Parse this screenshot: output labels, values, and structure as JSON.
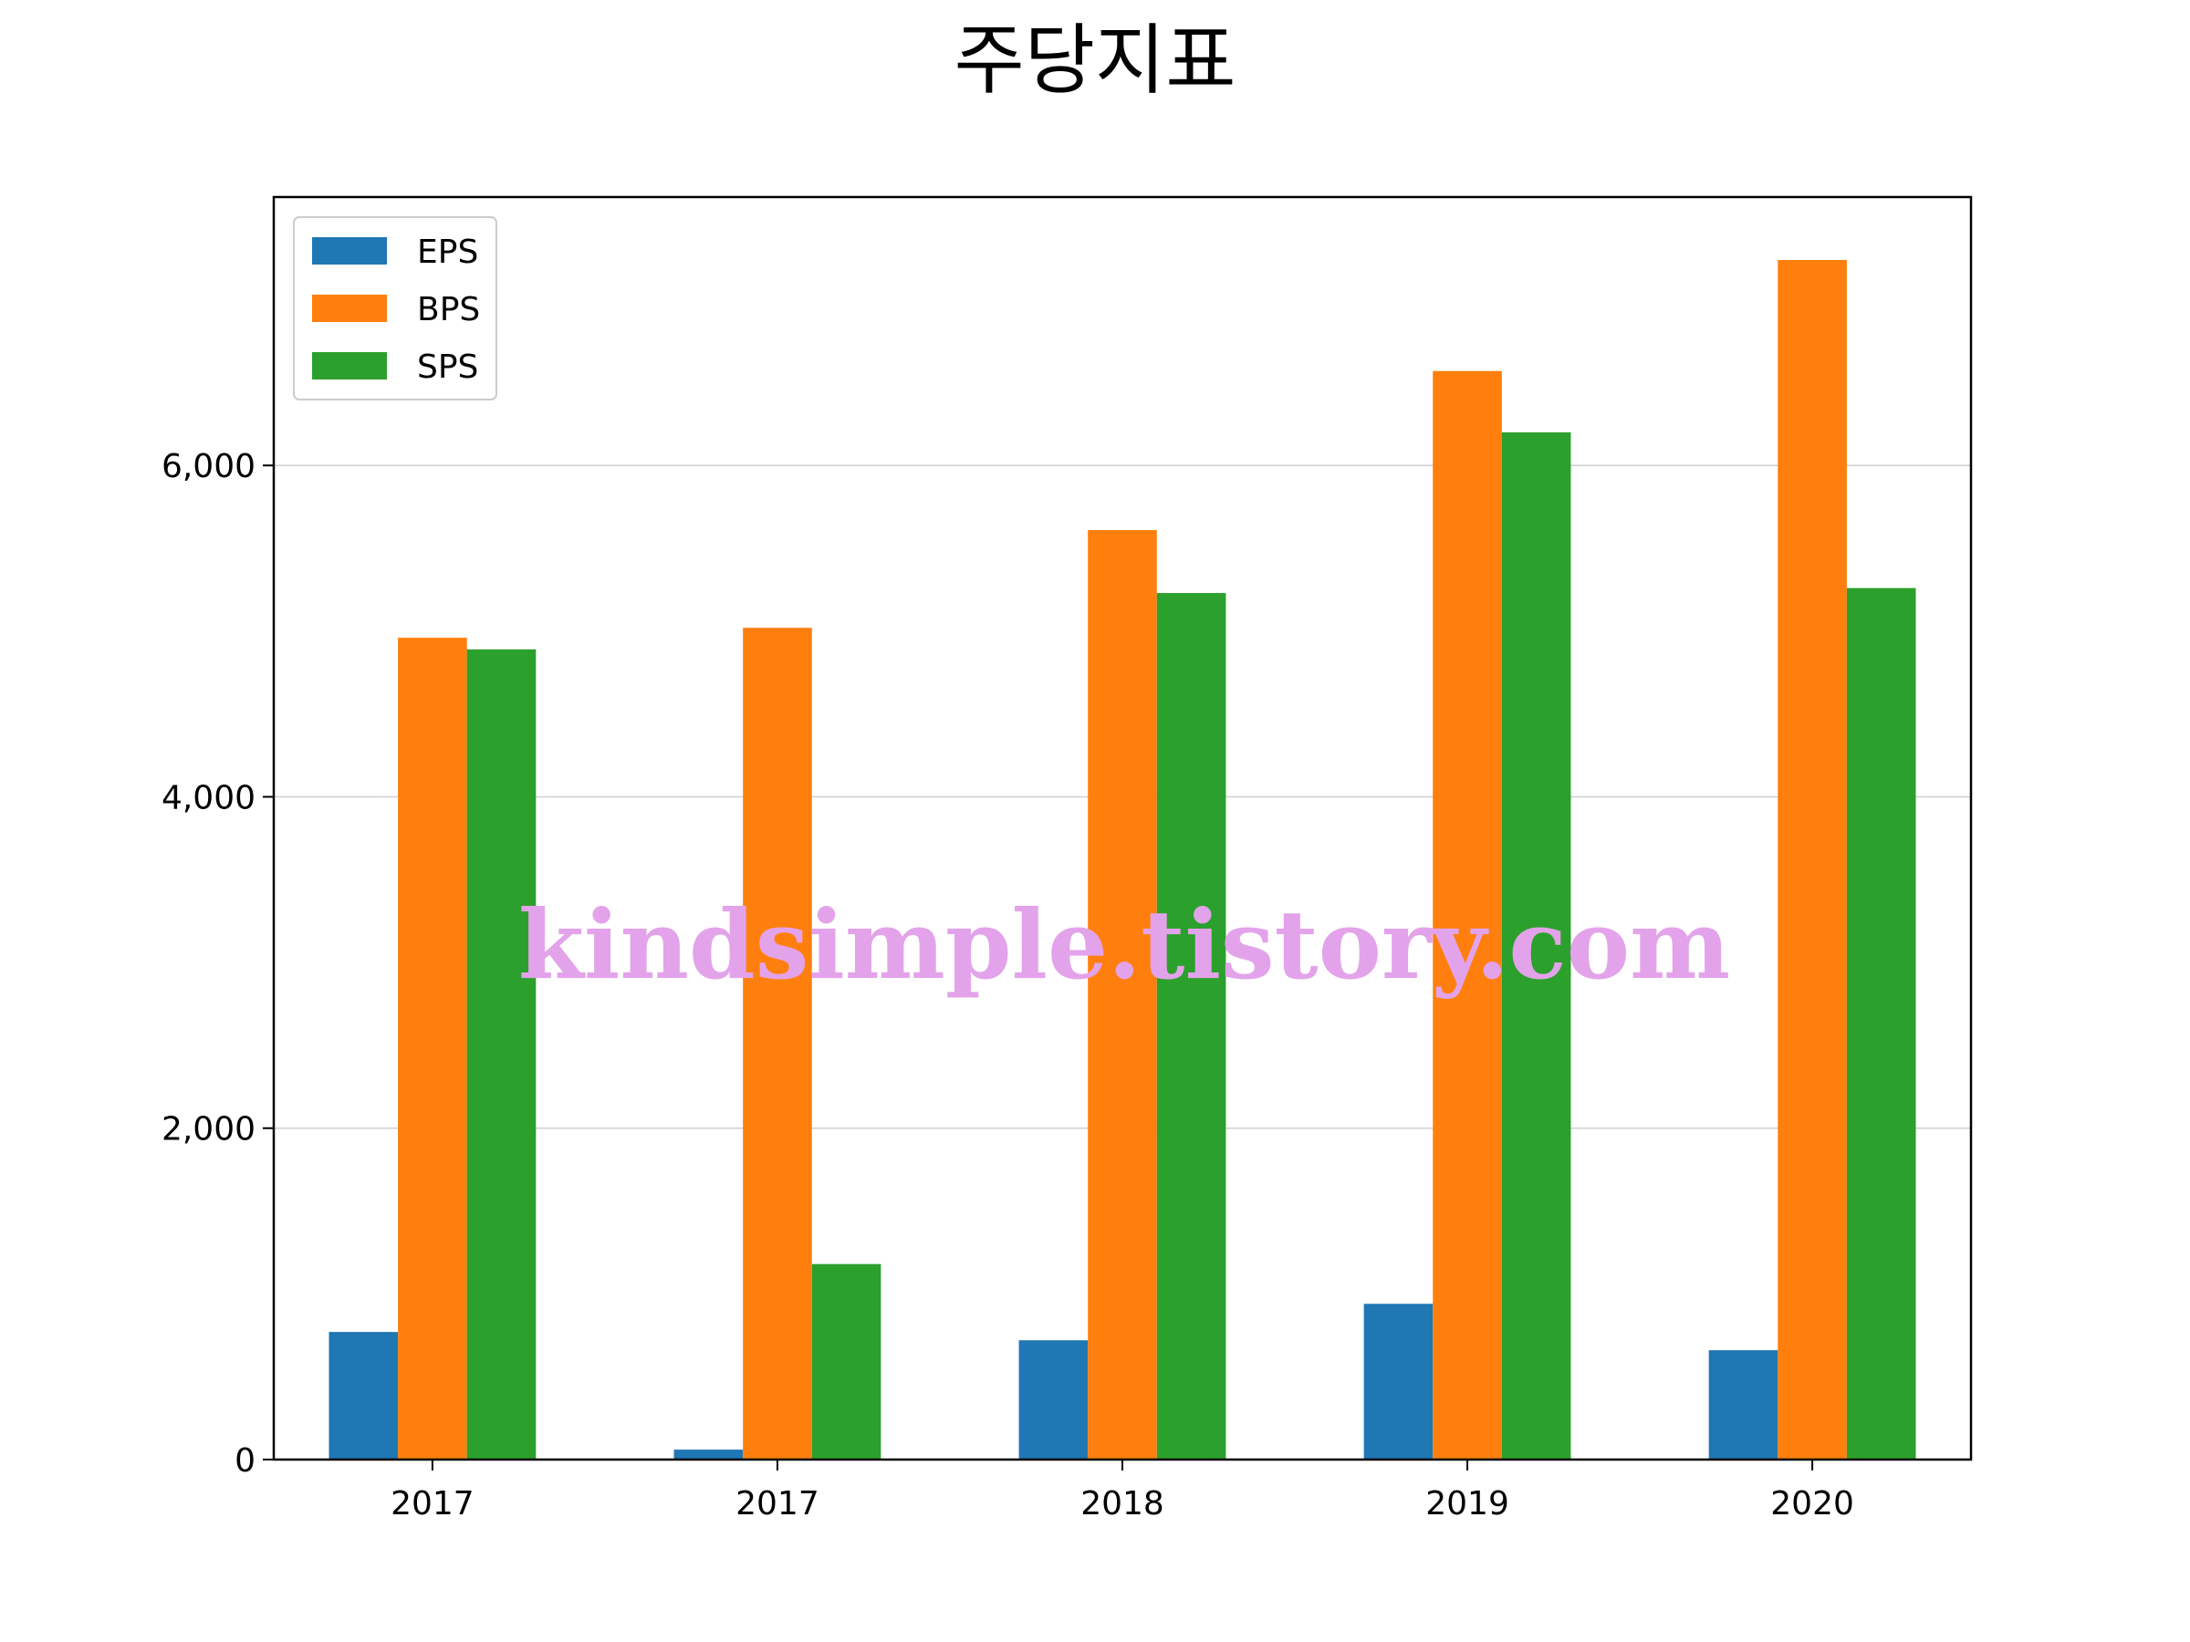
{
  "chart_data": {
    "type": "bar",
    "title": "주당지표",
    "xlabel": "",
    "ylabel": "",
    "categories": [
      "2017",
      "2017",
      "2018",
      "2019",
      "2020"
    ],
    "series": [
      {
        "name": "EPS",
        "values": [
          770,
          60,
          720,
          940,
          660
        ]
      },
      {
        "name": "BPS",
        "values": [
          4960,
          5020,
          5610,
          6570,
          7240
        ]
      },
      {
        "name": "SPS",
        "values": [
          4890,
          1180,
          5230,
          6200,
          5260
        ]
      }
    ],
    "ylim": [
      0,
      7620
    ],
    "yticks": [
      0,
      2000,
      4000,
      6000
    ],
    "ytick_labels": [
      "0",
      "2,000",
      "4,000",
      "6,000"
    ],
    "grid": "horizontal",
    "legend_position": "top-left",
    "colors": [
      "#1f77b4",
      "#ff7f0e",
      "#2ca02c"
    ]
  },
  "watermark": "kindsimple.tistory.com"
}
